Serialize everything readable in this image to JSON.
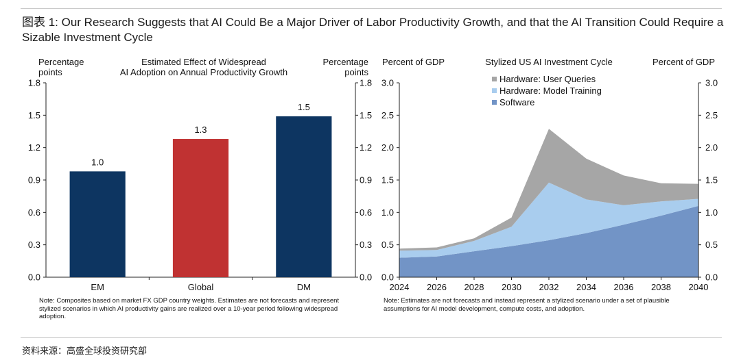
{
  "title": "图表 1: Our Research Suggests that AI Could Be a Major Driver of Labor Productivity Growth, and that the AI Transition Could Require a Sizable Investment Cycle",
  "source": "资料来源：高盛全球投资研究部",
  "chart_data": [
    {
      "type": "bar",
      "title_lines": [
        "Estimated Effect of Widespread",
        "AI Adoption on Annual Productivity Growth"
      ],
      "left_axis_label_lines": [
        "Percentage",
        "points"
      ],
      "right_axis_label_lines": [
        "Percentage",
        "points"
      ],
      "categories": [
        "EM",
        "Global",
        "DM"
      ],
      "values": [
        0.98,
        1.28,
        1.49
      ],
      "data_labels": [
        "1.0",
        "1.3",
        "1.5"
      ],
      "colors": [
        "#0d3561",
        "#c03232",
        "#0d3561"
      ],
      "ylim": [
        0,
        1.8
      ],
      "yticks": [
        0.0,
        0.3,
        0.6,
        0.9,
        1.2,
        1.5,
        1.8
      ],
      "ytick_labels": [
        "0.0",
        "0.3",
        "0.6",
        "0.9",
        "1.2",
        "1.5",
        "1.8"
      ],
      "note": "Note: Composites based on market FX GDP country weights. Estimates are not forecasts and represent stylized scenarios in which AI productivity gains are realized over a 10-year period following widespread adoption."
    },
    {
      "type": "area",
      "stacked": true,
      "title": "Stylized US AI Investment Cycle",
      "left_axis_label": "Percent of GDP",
      "right_axis_label": "Percent of GDP",
      "x": [
        2024,
        2026,
        2028,
        2030,
        2032,
        2034,
        2036,
        2038,
        2040
      ],
      "xlim": [
        2024,
        2040
      ],
      "xtick_labels": [
        "2024",
        "2026",
        "2028",
        "2030",
        "2032",
        "2034",
        "2036",
        "2038",
        "2040"
      ],
      "ylim": [
        0,
        3.0
      ],
      "yticks": [
        0.0,
        0.5,
        1.0,
        1.5,
        2.0,
        2.5,
        3.0
      ],
      "ytick_labels": [
        "0.0",
        "0.5",
        "1.0",
        "1.5",
        "2.0",
        "2.5",
        "3.0"
      ],
      "series": [
        {
          "name": "Software",
          "color": "#7294c6",
          "values": [
            0.3,
            0.32,
            0.4,
            0.48,
            0.57,
            0.68,
            0.81,
            0.95,
            1.1
          ]
        },
        {
          "name": "Hardware: Model Training",
          "color": "#a9cdee",
          "values": [
            0.11,
            0.1,
            0.16,
            0.3,
            0.89,
            0.52,
            0.3,
            0.22,
            0.11
          ]
        },
        {
          "name": "Hardware: User Queries",
          "color": "#a6a6a6",
          "values": [
            0.03,
            0.04,
            0.04,
            0.14,
            0.83,
            0.63,
            0.46,
            0.28,
            0.23
          ]
        }
      ],
      "legend_order": [
        "Hardware: User Queries",
        "Hardware: Model Training",
        "Software"
      ],
      "legend_position": "top-left",
      "note": "Note: Estimates are not forecasts and instead represent a stylized scenario under a set of plausible assumptions for AI model development, compute costs, and adoption."
    }
  ]
}
